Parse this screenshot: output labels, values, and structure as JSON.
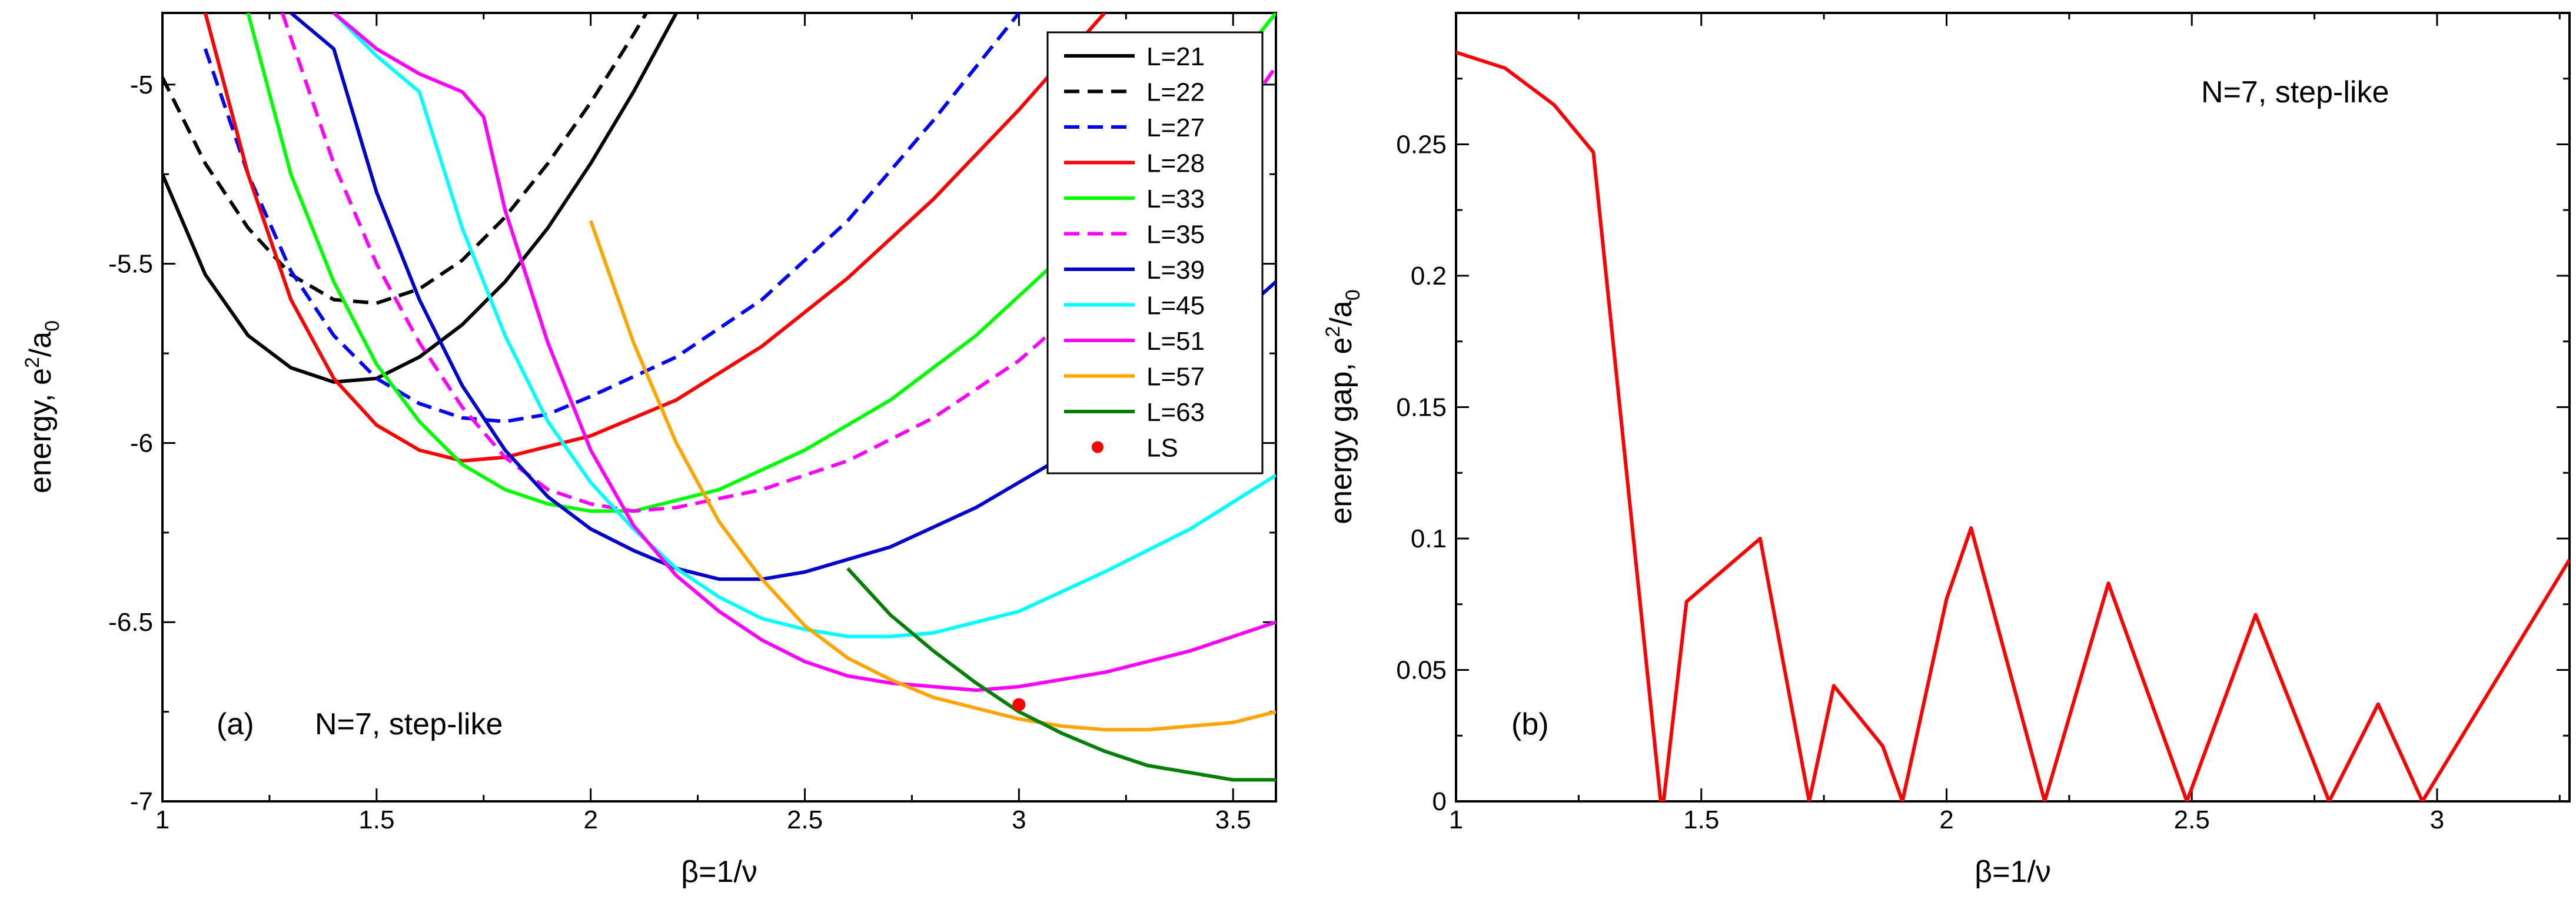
{
  "chart_data": [
    {
      "panel": "a",
      "type": "line",
      "panel_label": "(a)",
      "annotation": "N=7, step-like",
      "xlabel": "β=1/ν",
      "ylabel_main": "energy, e",
      "ylabel_sup": "2",
      "ylabel_mid": "/a",
      "ylabel_sub": "0",
      "xlim": [
        1,
        3.6
      ],
      "ylim": [
        -7,
        -4.8
      ],
      "xticks": [
        1,
        1.5,
        2,
        2.5,
        3,
        3.5
      ],
      "xtick_labels": [
        "1",
        "1.5",
        "2",
        "2.5",
        "3",
        "3.5"
      ],
      "yticks": [
        -7,
        -6.5,
        -6,
        -5.5,
        -5
      ],
      "ytick_labels": [
        "-7",
        "-6.5",
        "-6",
        "-5.5",
        "-5"
      ],
      "legend_position": "top-right",
      "series": [
        {
          "name": "L=21",
          "color": "#000000",
          "dash": "solid",
          "points": [
            [
              1.0,
              -5.25
            ],
            [
              1.1,
              -5.53
            ],
            [
              1.2,
              -5.7
            ],
            [
              1.3,
              -5.79
            ],
            [
              1.4,
              -5.83
            ],
            [
              1.5,
              -5.82
            ],
            [
              1.6,
              -5.76
            ],
            [
              1.7,
              -5.67
            ],
            [
              1.8,
              -5.55
            ],
            [
              1.9,
              -5.4
            ],
            [
              2.0,
              -5.22
            ],
            [
              2.1,
              -5.02
            ],
            [
              2.2,
              -4.8
            ]
          ]
        },
        {
          "name": "L=22",
          "color": "#000000",
          "dash": "dashed",
          "points": [
            [
              1.0,
              -4.98
            ],
            [
              1.1,
              -5.22
            ],
            [
              1.2,
              -5.4
            ],
            [
              1.3,
              -5.53
            ],
            [
              1.4,
              -5.6
            ],
            [
              1.5,
              -5.61
            ],
            [
              1.6,
              -5.57
            ],
            [
              1.7,
              -5.49
            ],
            [
              1.8,
              -5.37
            ],
            [
              1.9,
              -5.22
            ],
            [
              2.0,
              -5.05
            ],
            [
              2.1,
              -4.86
            ],
            [
              2.13,
              -4.8
            ]
          ]
        },
        {
          "name": "L=27",
          "color": "#0000ff",
          "dash": "dashed",
          "points": [
            [
              1.1,
              -4.9
            ],
            [
              1.2,
              -5.25
            ],
            [
              1.3,
              -5.52
            ],
            [
              1.4,
              -5.7
            ],
            [
              1.5,
              -5.82
            ],
            [
              1.6,
              -5.89
            ],
            [
              1.7,
              -5.93
            ],
            [
              1.8,
              -5.94
            ],
            [
              1.9,
              -5.92
            ],
            [
              2.0,
              -5.87
            ],
            [
              2.2,
              -5.76
            ],
            [
              2.4,
              -5.6
            ],
            [
              2.6,
              -5.38
            ],
            [
              2.8,
              -5.1
            ],
            [
              3.0,
              -4.8
            ]
          ]
        },
        {
          "name": "L=28",
          "color": "#ff0000",
          "dash": "solid",
          "points": [
            [
              1.1,
              -4.8
            ],
            [
              1.2,
              -5.25
            ],
            [
              1.3,
              -5.6
            ],
            [
              1.4,
              -5.82
            ],
            [
              1.5,
              -5.95
            ],
            [
              1.6,
              -6.02
            ],
            [
              1.7,
              -6.05
            ],
            [
              1.8,
              -6.04
            ],
            [
              2.0,
              -5.98
            ],
            [
              2.2,
              -5.88
            ],
            [
              2.4,
              -5.73
            ],
            [
              2.6,
              -5.54
            ],
            [
              2.8,
              -5.32
            ],
            [
              3.0,
              -5.07
            ],
            [
              3.2,
              -4.8
            ]
          ]
        },
        {
          "name": "L=33",
          "color": "#00ff00",
          "dash": "solid",
          "points": [
            [
              1.2,
              -4.8
            ],
            [
              1.3,
              -5.25
            ],
            [
              1.4,
              -5.55
            ],
            [
              1.5,
              -5.78
            ],
            [
              1.6,
              -5.94
            ],
            [
              1.7,
              -6.06
            ],
            [
              1.8,
              -6.13
            ],
            [
              1.9,
              -6.17
            ],
            [
              2.0,
              -6.19
            ],
            [
              2.1,
              -6.19
            ],
            [
              2.3,
              -6.13
            ],
            [
              2.5,
              -6.02
            ],
            [
              2.7,
              -5.88
            ],
            [
              2.9,
              -5.7
            ],
            [
              3.1,
              -5.48
            ],
            [
              3.3,
              -5.23
            ],
            [
              3.5,
              -4.95
            ],
            [
              3.6,
              -4.8
            ]
          ]
        },
        {
          "name": "L=35",
          "color": "#ff00ff",
          "dash": "dashed",
          "points": [
            [
              1.28,
              -4.8
            ],
            [
              1.4,
              -5.22
            ],
            [
              1.5,
              -5.5
            ],
            [
              1.6,
              -5.72
            ],
            [
              1.7,
              -5.9
            ],
            [
              1.8,
              -6.04
            ],
            [
              1.9,
              -6.13
            ],
            [
              2.0,
              -6.17
            ],
            [
              2.1,
              -6.19
            ],
            [
              2.2,
              -6.18
            ],
            [
              2.4,
              -6.13
            ],
            [
              2.6,
              -6.05
            ],
            [
              2.8,
              -5.93
            ],
            [
              3.0,
              -5.77
            ],
            [
              3.2,
              -5.56
            ],
            [
              3.4,
              -5.29
            ],
            [
              3.6,
              -4.95
            ]
          ]
        },
        {
          "name": "L=39",
          "color": "#0000cd",
          "dash": "solid",
          "points": [
            [
              1.3,
              -4.8
            ],
            [
              1.4,
              -4.9
            ],
            [
              1.5,
              -5.3
            ],
            [
              1.6,
              -5.6
            ],
            [
              1.7,
              -5.84
            ],
            [
              1.8,
              -6.02
            ],
            [
              1.9,
              -6.15
            ],
            [
              2.0,
              -6.24
            ],
            [
              2.1,
              -6.3
            ],
            [
              2.2,
              -6.35
            ],
            [
              2.3,
              -6.38
            ],
            [
              2.4,
              -6.38
            ],
            [
              2.5,
              -6.36
            ],
            [
              2.7,
              -6.29
            ],
            [
              2.9,
              -6.18
            ],
            [
              3.1,
              -6.04
            ],
            [
              3.3,
              -5.87
            ],
            [
              3.6,
              -5.55
            ]
          ]
        },
        {
          "name": "L=45",
          "color": "#00ffff",
          "dash": "solid",
          "points": [
            [
              1.4,
              -4.8
            ],
            [
              1.5,
              -4.92
            ],
            [
              1.6,
              -5.02
            ],
            [
              1.7,
              -5.4
            ],
            [
              1.8,
              -5.7
            ],
            [
              1.9,
              -5.94
            ],
            [
              2.0,
              -6.11
            ],
            [
              2.1,
              -6.24
            ],
            [
              2.2,
              -6.35
            ],
            [
              2.3,
              -6.43
            ],
            [
              2.4,
              -6.49
            ],
            [
              2.5,
              -6.52
            ],
            [
              2.6,
              -6.54
            ],
            [
              2.7,
              -6.54
            ],
            [
              2.8,
              -6.53
            ],
            [
              3.0,
              -6.47
            ],
            [
              3.2,
              -6.36
            ],
            [
              3.4,
              -6.24
            ],
            [
              3.6,
              -6.09
            ]
          ]
        },
        {
          "name": "L=51",
          "color": "#ff00ff",
          "dash": "solid",
          "points": [
            [
              1.4,
              -4.8
            ],
            [
              1.5,
              -4.9
            ],
            [
              1.6,
              -4.97
            ],
            [
              1.7,
              -5.02
            ],
            [
              1.75,
              -5.09
            ],
            [
              1.8,
              -5.35
            ],
            [
              1.9,
              -5.72
            ],
            [
              2.0,
              -6.02
            ],
            [
              2.1,
              -6.23
            ],
            [
              2.2,
              -6.37
            ],
            [
              2.3,
              -6.47
            ],
            [
              2.4,
              -6.55
            ],
            [
              2.5,
              -6.61
            ],
            [
              2.6,
              -6.65
            ],
            [
              2.7,
              -6.67
            ],
            [
              2.8,
              -6.68
            ],
            [
              2.9,
              -6.69
            ],
            [
              3.0,
              -6.68
            ],
            [
              3.2,
              -6.64
            ],
            [
              3.4,
              -6.58
            ],
            [
              3.6,
              -6.5
            ]
          ]
        },
        {
          "name": "L=57",
          "color": "#ffa500",
          "dash": "solid",
          "points": [
            [
              2.0,
              -5.38
            ],
            [
              2.1,
              -5.72
            ],
            [
              2.2,
              -6.0
            ],
            [
              2.3,
              -6.22
            ],
            [
              2.4,
              -6.38
            ],
            [
              2.5,
              -6.51
            ],
            [
              2.6,
              -6.6
            ],
            [
              2.7,
              -6.66
            ],
            [
              2.8,
              -6.71
            ],
            [
              2.9,
              -6.74
            ],
            [
              3.0,
              -6.77
            ],
            [
              3.1,
              -6.79
            ],
            [
              3.2,
              -6.8
            ],
            [
              3.3,
              -6.8
            ],
            [
              3.4,
              -6.79
            ],
            [
              3.5,
              -6.78
            ],
            [
              3.6,
              -6.75
            ]
          ]
        },
        {
          "name": "L=63",
          "color": "#008000",
          "dash": "solid",
          "points": [
            [
              2.6,
              -6.35
            ],
            [
              2.7,
              -6.48
            ],
            [
              2.8,
              -6.58
            ],
            [
              2.9,
              -6.67
            ],
            [
              3.0,
              -6.75
            ],
            [
              3.1,
              -6.81
            ],
            [
              3.2,
              -6.86
            ],
            [
              3.3,
              -6.9
            ],
            [
              3.4,
              -6.92
            ],
            [
              3.5,
              -6.94
            ],
            [
              3.6,
              -6.94
            ]
          ]
        }
      ],
      "markers": [
        {
          "name": "LS",
          "color": "#ff0000",
          "points": [
            [
              3.0,
              -6.73
            ]
          ]
        }
      ]
    },
    {
      "panel": "b",
      "type": "line",
      "panel_label": "(b)",
      "annotation": "N=7, step-like",
      "xlabel": "β=1/ν",
      "ylabel_main": "energy gap, e",
      "ylabel_sup": "2",
      "ylabel_mid": "/a",
      "ylabel_sub": "0",
      "xlim": [
        1,
        3.27
      ],
      "ylim": [
        0,
        0.3
      ],
      "xticks": [
        1,
        1.5,
        2,
        2.5,
        3
      ],
      "xtick_labels": [
        "1",
        "1.5",
        "2",
        "2.5",
        "3"
      ],
      "yticks": [
        0,
        0.05,
        0.1,
        0.15,
        0.2,
        0.25
      ],
      "ytick_labels": [
        "0",
        "0.05",
        "0.1",
        "0.15",
        "0.2",
        "0.25"
      ],
      "series": [
        {
          "name": "gap",
          "color": "#ff0000",
          "dash": "solid",
          "points": [
            [
              1.0,
              0.285
            ],
            [
              1.1,
              0.279
            ],
            [
              1.2,
              0.265
            ],
            [
              1.28,
              0.247
            ],
            [
              1.42,
              -0.005
            ],
            [
              1.47,
              0.076
            ],
            [
              1.62,
              0.1
            ],
            [
              1.72,
              0.0
            ],
            [
              1.77,
              0.044
            ],
            [
              1.87,
              0.021
            ],
            [
              1.91,
              0.0
            ],
            [
              2.0,
              0.077
            ],
            [
              2.05,
              0.104
            ],
            [
              2.2,
              0.0
            ],
            [
              2.33,
              0.083
            ],
            [
              2.49,
              0.0
            ],
            [
              2.63,
              0.071
            ],
            [
              2.78,
              0.0
            ],
            [
              2.88,
              0.037
            ],
            [
              2.97,
              0.0
            ],
            [
              3.27,
              0.092
            ]
          ]
        }
      ]
    }
  ]
}
